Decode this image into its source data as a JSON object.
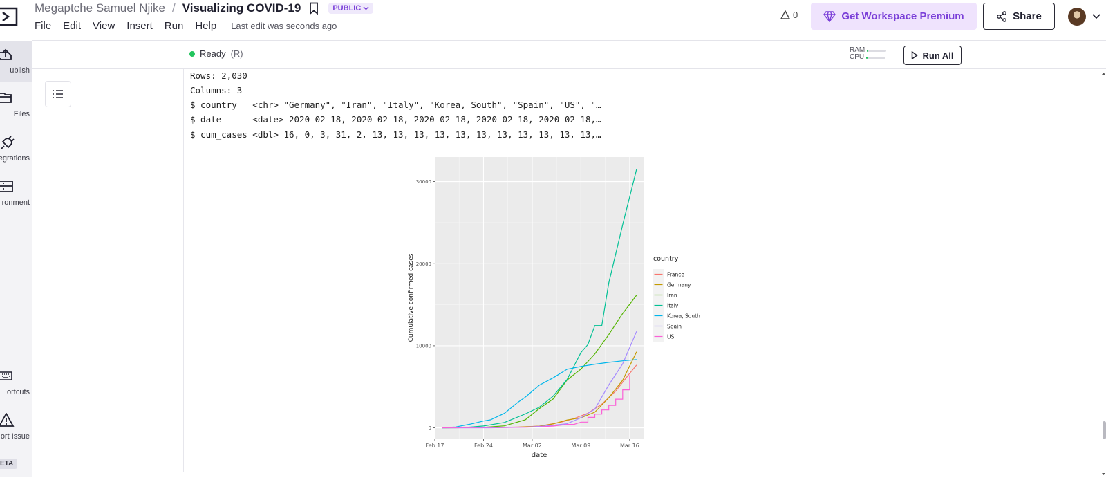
{
  "header": {
    "owner": "Megaptche Samuel Njike",
    "separator": "/",
    "title": "Visualizing COVID-19",
    "visibility": "PUBLIC",
    "menu": [
      "File",
      "Edit",
      "View",
      "Insert",
      "Run",
      "Help"
    ],
    "last_edit": "Last edit was seconds ago",
    "warnings_count": "0",
    "premium_label": "Get Workspace Premium",
    "share_label": "Share"
  },
  "sidebar": {
    "items": [
      {
        "label": "ublish",
        "icon": "publish-icon"
      },
      {
        "label": "Files",
        "icon": "folder-icon"
      },
      {
        "label": "egrations",
        "icon": "plug-icon"
      },
      {
        "label": "ronment",
        "icon": "server-icon"
      },
      {
        "label": "ortcuts",
        "icon": "keyboard-icon"
      },
      {
        "label": "ort Issue",
        "icon": "warning-icon"
      }
    ],
    "beta_label": "ETA"
  },
  "status": {
    "state": "Ready",
    "kernel": "(R)",
    "ram_label": "RAM",
    "cpu_label": "CPU",
    "ram_usage": 0.05,
    "cpu_usage": 0.05,
    "run_all_label": "Run All"
  },
  "output": {
    "lines": [
      "Rows: 2,030",
      "Columns: 3",
      "$ country   <chr> \"Germany\", \"Iran\", \"Italy\", \"Korea, South\", \"Spain\", \"US\", \"…",
      "$ date      <date> 2020-02-18, 2020-02-18, 2020-02-18, 2020-02-18, 2020-02-18,…",
      "$ cum_cases <dbl> 16, 0, 3, 31, 2, 13, 13, 13, 13, 13, 13, 13, 13, 13, 13, 13,…"
    ]
  },
  "chart_data": {
    "type": "line",
    "xlabel": "date",
    "ylabel": "Cumulative confirmed cases",
    "x_ticks": [
      "Feb 17",
      "Feb 24",
      "Mar 02",
      "Mar 09",
      "Mar 16"
    ],
    "y_ticks": [
      "0",
      "10000",
      "20000",
      "30000"
    ],
    "xlim": [
      "2020-02-17",
      "2020-03-18"
    ],
    "ylim": [
      -1300,
      33000
    ],
    "background": "#ebebeb",
    "grid": true,
    "legend_title": "country",
    "legend_position": "right",
    "series": [
      {
        "name": "France",
        "color": "#f8766d",
        "points": [
          [
            "2020-02-18",
            12
          ],
          [
            "2020-02-25",
            14
          ],
          [
            "2020-02-29",
            100
          ],
          [
            "2020-03-03",
            212
          ],
          [
            "2020-03-06",
            653
          ],
          [
            "2020-03-08",
            1126
          ],
          [
            "2020-03-10",
            1784
          ],
          [
            "2020-03-12",
            2876
          ],
          [
            "2020-03-14",
            4480
          ],
          [
            "2020-03-16",
            6633
          ],
          [
            "2020-03-17",
            7652
          ]
        ]
      },
      {
        "name": "Germany",
        "color": "#c49a00",
        "points": [
          [
            "2020-02-18",
            16
          ],
          [
            "2020-02-25",
            17
          ],
          [
            "2020-02-29",
            79
          ],
          [
            "2020-03-03",
            196
          ],
          [
            "2020-03-05",
            482
          ],
          [
            "2020-03-07",
            957
          ],
          [
            "2020-03-09",
            1224
          ],
          [
            "2020-03-11",
            1908
          ],
          [
            "2020-03-13",
            3675
          ],
          [
            "2020-03-15",
            5795
          ],
          [
            "2020-03-17",
            9257
          ]
        ]
      },
      {
        "name": "Iran",
        "color": "#53b400",
        "points": [
          [
            "2020-02-18",
            0
          ],
          [
            "2020-02-20",
            5
          ],
          [
            "2020-02-24",
            61
          ],
          [
            "2020-02-27",
            245
          ],
          [
            "2020-03-01",
            978
          ],
          [
            "2020-03-03",
            2336
          ],
          [
            "2020-03-05",
            3513
          ],
          [
            "2020-03-07",
            5823
          ],
          [
            "2020-03-09",
            7161
          ],
          [
            "2020-03-11",
            9000
          ],
          [
            "2020-03-13",
            11364
          ],
          [
            "2020-03-15",
            13938
          ],
          [
            "2020-03-17",
            16169
          ]
        ]
      },
      {
        "name": "Italy",
        "color": "#00c094",
        "points": [
          [
            "2020-02-18",
            3
          ],
          [
            "2020-02-21",
            20
          ],
          [
            "2020-02-24",
            229
          ],
          [
            "2020-02-27",
            655
          ],
          [
            "2020-03-01",
            1694
          ],
          [
            "2020-03-03",
            2502
          ],
          [
            "2020-03-05",
            3858
          ],
          [
            "2020-03-07",
            5883
          ],
          [
            "2020-03-09",
            9172
          ],
          [
            "2020-03-10",
            10149
          ],
          [
            "2020-03-11",
            12462
          ],
          [
            "2020-03-12",
            12462
          ],
          [
            "2020-03-13",
            17660
          ],
          [
            "2020-03-15",
            24747
          ],
          [
            "2020-03-17",
            31506
          ]
        ]
      },
      {
        "name": "Korea, South",
        "color": "#00b6eb",
        "points": [
          [
            "2020-02-18",
            31
          ],
          [
            "2020-02-20",
            104
          ],
          [
            "2020-02-22",
            433
          ],
          [
            "2020-02-24",
            833
          ],
          [
            "2020-02-25",
            977
          ],
          [
            "2020-02-27",
            1766
          ],
          [
            "2020-02-29",
            3150
          ],
          [
            "2020-03-01",
            3736
          ],
          [
            "2020-03-03",
            5186
          ],
          [
            "2020-03-05",
            6088
          ],
          [
            "2020-03-07",
            7134
          ],
          [
            "2020-03-09",
            7478
          ],
          [
            "2020-03-11",
            7755
          ],
          [
            "2020-03-13",
            7979
          ],
          [
            "2020-03-15",
            8162
          ],
          [
            "2020-03-17",
            8320
          ]
        ]
      },
      {
        "name": "Spain",
        "color": "#a58aff",
        "points": [
          [
            "2020-02-18",
            2
          ],
          [
            "2020-02-25",
            6
          ],
          [
            "2020-03-01",
            84
          ],
          [
            "2020-03-04",
            222
          ],
          [
            "2020-03-07",
            500
          ],
          [
            "2020-03-09",
            1231
          ],
          [
            "2020-03-11",
            2277
          ],
          [
            "2020-03-13",
            5232
          ],
          [
            "2020-03-15",
            7798
          ],
          [
            "2020-03-17",
            11748
          ]
        ]
      },
      {
        "name": "US",
        "color": "#fb61d7",
        "points": [
          [
            "2020-02-18",
            13
          ],
          [
            "2020-02-25",
            53
          ],
          [
            "2020-03-01",
            75
          ],
          [
            "2020-03-03",
            118
          ],
          [
            "2020-03-05",
            221
          ],
          [
            "2020-03-07",
            417
          ],
          [
            "2020-03-08",
            417
          ],
          [
            "2020-03-09",
            697
          ],
          [
            "2020-03-10",
            697
          ],
          [
            "2020-03-10",
            1281
          ],
          [
            "2020-03-11",
            1281
          ],
          [
            "2020-03-11",
            1663
          ],
          [
            "2020-03-12",
            1663
          ],
          [
            "2020-03-12",
            2179
          ],
          [
            "2020-03-13",
            2179
          ],
          [
            "2020-03-13",
            2726
          ],
          [
            "2020-03-14",
            2726
          ],
          [
            "2020-03-14",
            3499
          ],
          [
            "2020-03-15",
            3499
          ],
          [
            "2020-03-15",
            4632
          ],
          [
            "2020-03-16",
            4632
          ],
          [
            "2020-03-16",
            6421
          ]
        ]
      }
    ]
  }
}
